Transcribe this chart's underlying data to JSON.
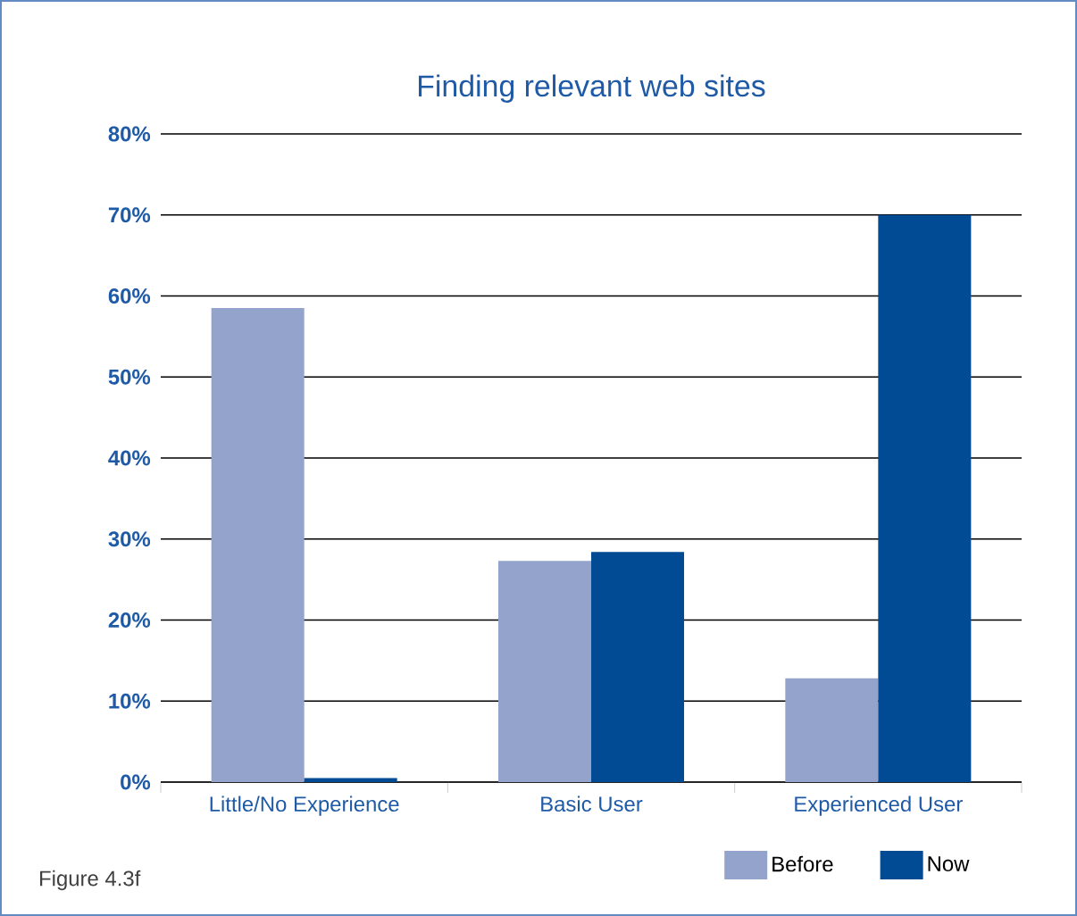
{
  "chart_data": {
    "type": "bar",
    "title": "Finding relevant web sites",
    "categories": [
      "Little/No Experience",
      "Basic User",
      "Experienced User"
    ],
    "series": [
      {
        "name": "Before",
        "color": "#94a3cc",
        "values": [
          58.5,
          27.3,
          12.8
        ]
      },
      {
        "name": "Now",
        "color": "#004b93",
        "values": [
          0.5,
          28.4,
          70
        ]
      }
    ],
    "ylim": [
      0,
      80
    ],
    "yticks": [
      {
        "value": 0,
        "label": "0%"
      },
      {
        "value": 10,
        "label": "10%"
      },
      {
        "value": 20,
        "label": "20%"
      },
      {
        "value": 30,
        "label": "30%"
      },
      {
        "value": 40,
        "label": "40%"
      },
      {
        "value": 50,
        "label": "50%"
      },
      {
        "value": 60,
        "label": "60%"
      },
      {
        "value": 70,
        "label": "70%"
      },
      {
        "value": 80,
        "label": "80%"
      }
    ],
    "grid": "y",
    "legend": "bottom right",
    "annotations": [
      "Figure 4.3f"
    ]
  }
}
